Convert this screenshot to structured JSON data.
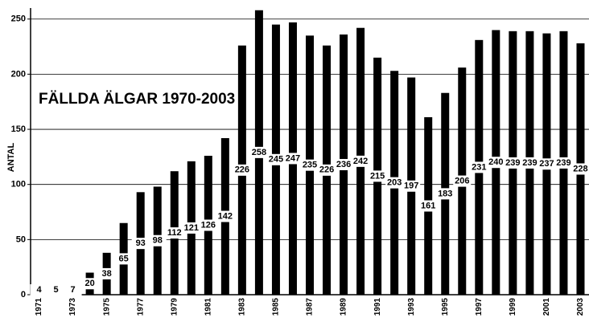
{
  "chart_data": {
    "type": "bar",
    "title": "FÄLLDA ÄLGAR 1970-2003",
    "y_label": "ANTAL",
    "categories": [
      "1971",
      null,
      "1973",
      null,
      "1975",
      null,
      "1977",
      null,
      "1979",
      null,
      "1981",
      null,
      "1983",
      null,
      "1985",
      null,
      "1987",
      null,
      "1989",
      null,
      "1991",
      null,
      "1993",
      null,
      "1995",
      null,
      "1997",
      null,
      "1999",
      null,
      "2001",
      null,
      "2003"
    ],
    "values": [
      4,
      5,
      7,
      20,
      38,
      65,
      93,
      98,
      112,
      121,
      126,
      142,
      226,
      258,
      245,
      247,
      235,
      226,
      236,
      242,
      215,
      203,
      197,
      161,
      183,
      206,
      231,
      240,
      239,
      239,
      237,
      239,
      228
    ],
    "color": "#000000",
    "ylim": [
      0,
      260
    ],
    "yticks": [
      0,
      50,
      100,
      150,
      200,
      250
    ],
    "grid": true
  }
}
